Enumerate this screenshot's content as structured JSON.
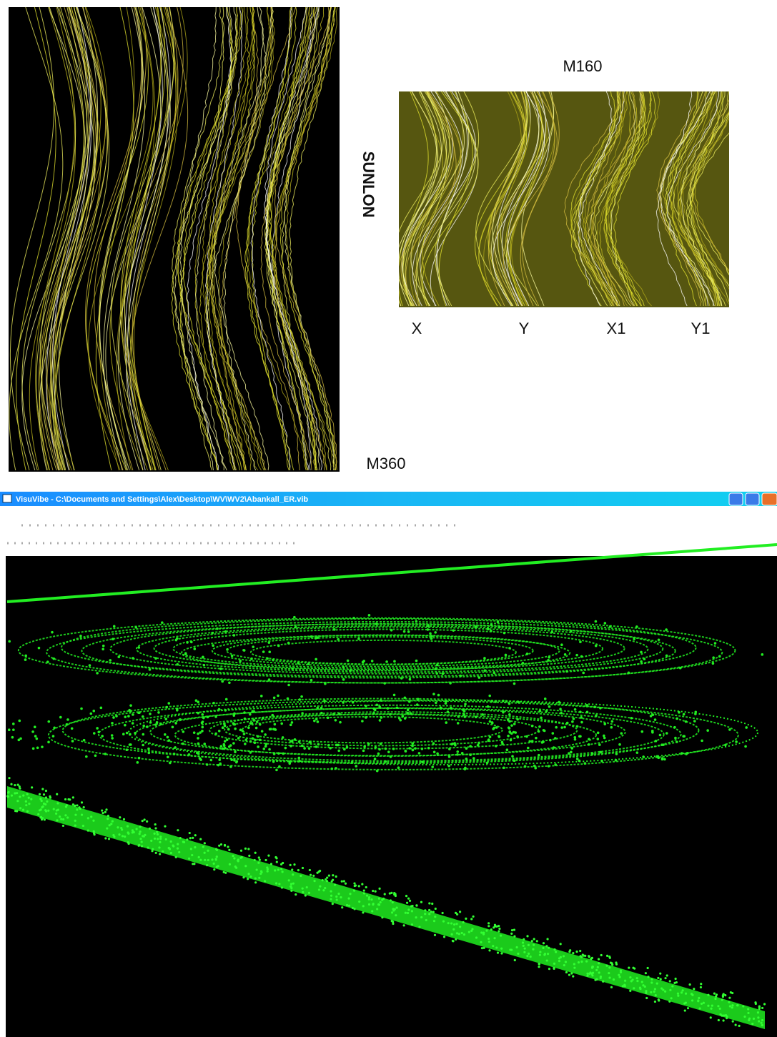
{
  "top_panel": {
    "title": "M160",
    "vertical_label": "SUNLON",
    "axis_labels": [
      "X",
      "Y",
      "X1",
      "Y1"
    ],
    "bottom_label": "M360"
  },
  "window": {
    "title": "VisuVibe - C:\\Documents and Settings\\Alex\\Desktop\\WV\\WV2\\Abankall_ER.vib"
  }
}
